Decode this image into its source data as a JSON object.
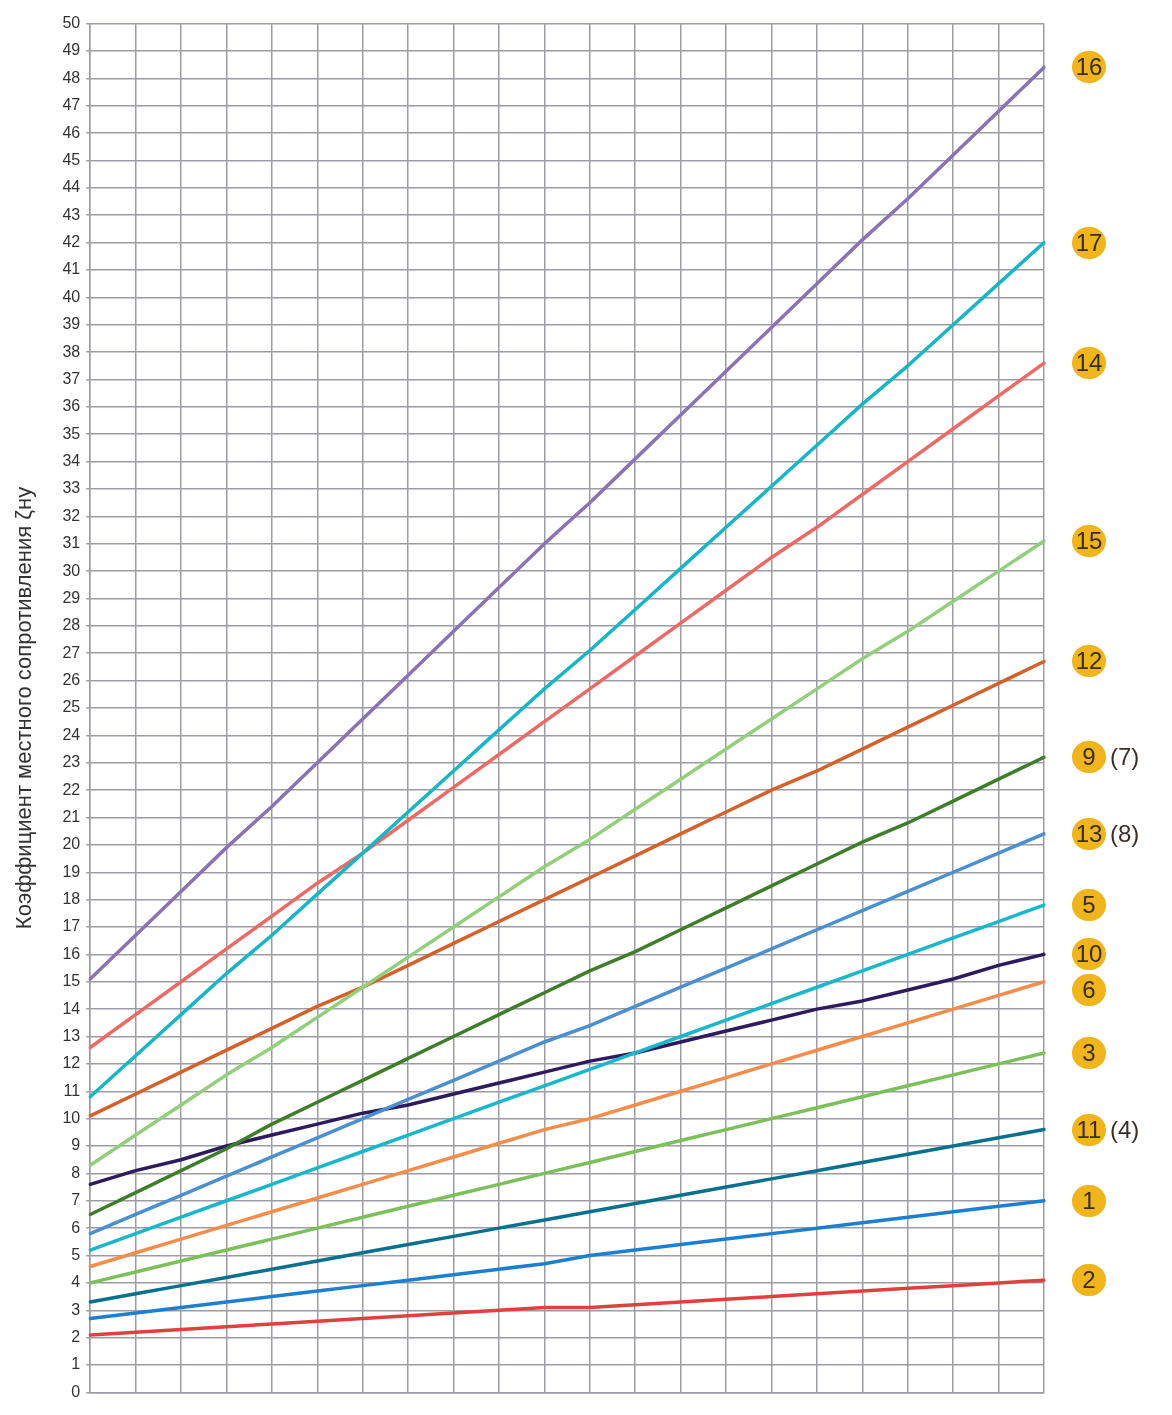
{
  "chart_data": {
    "type": "line",
    "ylabel": "Коэффициент местного сопротивления ζну",
    "categories": [
      null,
      null,
      null,
      null,
      null,
      null,
      null,
      null,
      null,
      null,
      null,
      null,
      null,
      null,
      null,
      null,
      null,
      null,
      null,
      null,
      null,
      null
    ],
    "ylim": [
      0,
      50
    ],
    "yticks": [
      0,
      1,
      2,
      3,
      4,
      5,
      6,
      7,
      8,
      9,
      10,
      11,
      12,
      13,
      14,
      15,
      16,
      17,
      18,
      19,
      20,
      21,
      22,
      23,
      24,
      25,
      26,
      27,
      28,
      29,
      30,
      31,
      32,
      33,
      34,
      35,
      36,
      37,
      38,
      39,
      40,
      41,
      42,
      43,
      44,
      45,
      46,
      47,
      48,
      49,
      50
    ],
    "tick_labels": "y",
    "grid": true,
    "marker": "none",
    "line_style": "solid",
    "series": [
      {
        "name": "16",
        "color": "#8b72b5",
        "values": [
          15.1,
          16.7,
          18.3,
          19.9,
          21.4,
          23.0,
          24.6,
          26.2,
          27.8,
          29.4,
          31.0,
          32.5,
          34.1,
          35.7,
          37.3,
          38.9,
          40.5,
          42.1,
          43.6,
          45.2,
          46.8,
          48.4
        ]
      },
      {
        "name": "17",
        "color": "#17b5c6",
        "values": [
          10.8,
          12.3,
          13.8,
          15.3,
          16.7,
          18.2,
          19.7,
          21.2,
          22.7,
          24.2,
          25.7,
          27.1,
          28.6,
          30.1,
          31.6,
          33.1,
          34.6,
          36.1,
          37.5,
          39.0,
          40.5,
          42.0
        ]
      },
      {
        "name": "14",
        "color": "#ec6a65",
        "values": [
          12.6,
          13.8,
          15.0,
          16.2,
          17.4,
          18.6,
          19.7,
          20.9,
          22.1,
          23.3,
          24.5,
          25.7,
          26.9,
          28.1,
          29.3,
          30.5,
          31.6,
          32.8,
          34.0,
          35.2,
          36.4,
          37.6
        ]
      },
      {
        "name": "15",
        "color": "#92cf7b",
        "values": [
          8.3,
          9.4,
          10.5,
          11.6,
          12.6,
          13.7,
          14.8,
          15.9,
          17.0,
          18.1,
          19.2,
          20.2,
          21.3,
          22.4,
          23.5,
          24.6,
          25.7,
          26.8,
          27.8,
          28.9,
          30.0,
          31.1
        ]
      },
      {
        "name": "12",
        "color": "#d4602a",
        "values": [
          10.1,
          10.9,
          11.7,
          12.5,
          13.3,
          14.1,
          14.8,
          15.6,
          16.4,
          17.2,
          18.0,
          18.8,
          19.6,
          20.4,
          21.2,
          22.0,
          22.7,
          23.5,
          24.3,
          25.1,
          25.9,
          26.7
        ]
      },
      {
        "name": "9 (7)",
        "color": "#3f7d2b",
        "values": [
          6.5,
          7.3,
          8.1,
          8.9,
          9.8,
          10.6,
          11.4,
          12.2,
          13.0,
          13.8,
          14.6,
          15.4,
          16.1,
          16.9,
          17.7,
          18.5,
          19.3,
          20.1,
          20.8,
          21.6,
          22.4,
          23.2
        ]
      },
      {
        "name": "13 (8)",
        "color": "#4a8fd0",
        "values": [
          5.8,
          6.5,
          7.2,
          7.9,
          8.6,
          9.3,
          10.0,
          10.7,
          11.4,
          12.1,
          12.8,
          13.4,
          14.1,
          14.8,
          15.5,
          16.2,
          16.9,
          17.6,
          18.3,
          19.0,
          19.7,
          20.4
        ]
      },
      {
        "name": "5",
        "color": "#19b7cc",
        "values": [
          5.2,
          5.8,
          6.4,
          7.0,
          7.6,
          8.2,
          8.8,
          9.4,
          10.0,
          10.6,
          11.2,
          11.8,
          12.4,
          13.0,
          13.6,
          14.2,
          14.8,
          15.4,
          16.0,
          16.6,
          17.2,
          17.8
        ]
      },
      {
        "name": "10",
        "color": "#2e1b5e",
        "values": [
          7.6,
          8.1,
          8.5,
          9.0,
          9.4,
          9.8,
          10.2,
          10.5,
          10.9,
          11.3,
          11.7,
          12.1,
          12.4,
          12.8,
          13.2,
          13.6,
          14.0,
          14.3,
          14.7,
          15.1,
          15.6,
          16.0
        ]
      },
      {
        "name": "6",
        "color": "#f58d4a",
        "values": [
          4.6,
          5.1,
          5.6,
          6.1,
          6.6,
          7.1,
          7.6,
          8.1,
          8.6,
          9.1,
          9.6,
          10.0,
          10.5,
          11.0,
          11.5,
          12.0,
          12.5,
          13.0,
          13.5,
          14.0,
          14.5,
          15.0
        ]
      },
      {
        "name": "3",
        "color": "#7cc05a",
        "values": [
          4.0,
          4.4,
          4.8,
          5.2,
          5.6,
          6.0,
          6.4,
          6.8,
          7.2,
          7.6,
          8.0,
          8.4,
          8.8,
          9.2,
          9.6,
          10.0,
          10.4,
          10.8,
          11.2,
          11.6,
          12.0,
          12.4
        ]
      },
      {
        "name": "11 (4)",
        "color": "#09708e",
        "values": [
          3.3,
          3.6,
          3.9,
          4.2,
          4.5,
          4.8,
          5.1,
          5.4,
          5.7,
          6.0,
          6.3,
          6.6,
          6.9,
          7.2,
          7.5,
          7.8,
          8.1,
          8.4,
          8.7,
          9.0,
          9.3,
          9.6
        ]
      },
      {
        "name": "1",
        "color": "#1c7fcf",
        "values": [
          2.7,
          2.9,
          3.1,
          3.3,
          3.5,
          3.7,
          3.9,
          4.1,
          4.3,
          4.5,
          4.7,
          5.0,
          5.2,
          5.4,
          5.6,
          5.8,
          6.0,
          6.2,
          6.4,
          6.6,
          6.8,
          7.0
        ]
      },
      {
        "name": "2",
        "color": "#e2403f",
        "values": [
          2.1,
          2.2,
          2.3,
          2.4,
          2.5,
          2.6,
          2.7,
          2.8,
          2.9,
          3.0,
          3.1,
          3.1,
          3.2,
          3.3,
          3.4,
          3.5,
          3.6,
          3.7,
          3.8,
          3.9,
          4.0,
          4.1
        ]
      }
    ]
  }
}
